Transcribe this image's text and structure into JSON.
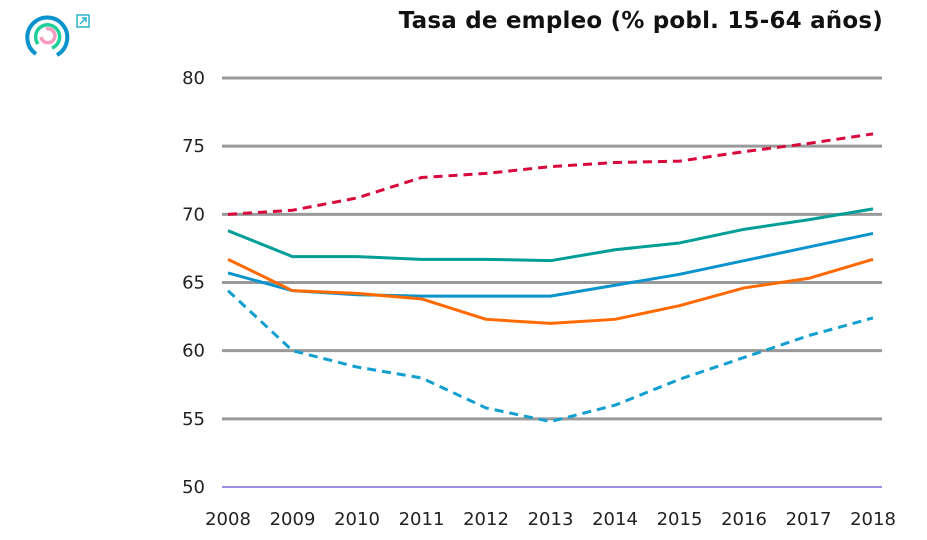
{
  "header": {
    "title": "Tasa de empleo (% pobl. 15-64 años)",
    "logo_icon": "concentric-rings-logo",
    "external_link_icon": "external-link-icon"
  },
  "chart_data": {
    "type": "line",
    "title": "Tasa de empleo (% pobl. 15-64 años)",
    "xlabel": "",
    "ylabel": "",
    "categories": [
      "2008",
      "2009",
      "2010",
      "2011",
      "2012",
      "2013",
      "2014",
      "2015",
      "2016",
      "2017",
      "2018"
    ],
    "ylim": [
      50,
      80
    ],
    "yticks": [
      50,
      55,
      60,
      65,
      70,
      75,
      80
    ],
    "grid": true,
    "legend": "none",
    "series": [
      {
        "color": "#d7063b",
        "dash": true,
        "values": [
          70.0,
          70.3,
          71.2,
          72.7,
          73.0,
          73.5,
          73.8,
          73.9,
          74.6,
          75.2,
          75.9
        ]
      },
      {
        "color": "#009e96",
        "dash": false,
        "values": [
          68.8,
          66.9,
          66.9,
          66.7,
          66.7,
          66.6,
          67.4,
          67.9,
          68.9,
          69.6,
          70.4
        ]
      },
      {
        "color": "#0a93cc",
        "dash": false,
        "values": [
          65.7,
          64.4,
          64.1,
          64.0,
          64.0,
          64.0,
          64.8,
          65.6,
          66.6,
          67.6,
          68.6
        ]
      },
      {
        "color": "#ff6a00",
        "dash": false,
        "values": [
          66.7,
          64.4,
          64.2,
          63.8,
          62.3,
          62.0,
          62.3,
          63.3,
          64.6,
          65.3,
          66.7
        ]
      },
      {
        "color": "#119fd0",
        "dash": true,
        "values": [
          64.4,
          60.0,
          58.8,
          58.0,
          55.8,
          54.8,
          56.0,
          57.9,
          59.5,
          61.1,
          62.4
        ]
      }
    ]
  }
}
